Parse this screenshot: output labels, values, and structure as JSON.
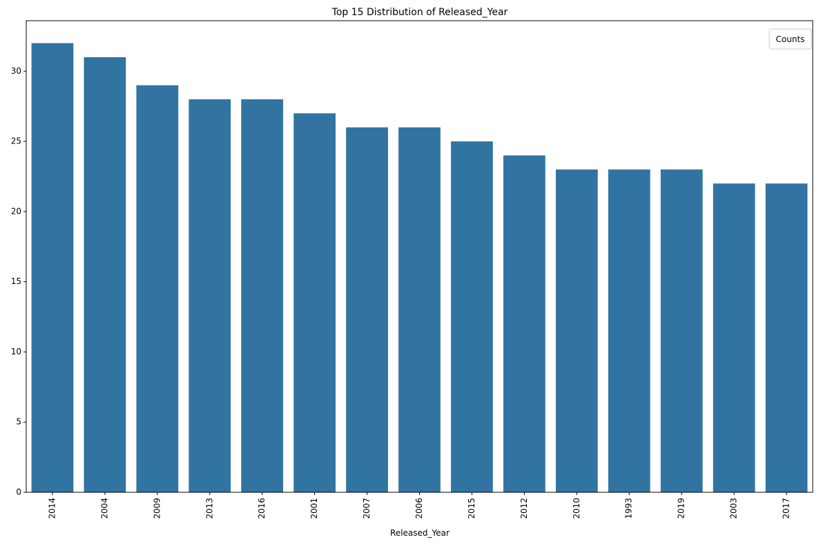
{
  "chart_data": {
    "type": "bar",
    "title": "Top 15 Distribution of Released_Year",
    "xlabel": "Released_Year",
    "ylabel": "",
    "categories": [
      "2014",
      "2004",
      "2009",
      "2013",
      "2016",
      "2001",
      "2007",
      "2006",
      "2015",
      "2012",
      "2010",
      "1993",
      "2019",
      "2003",
      "2017"
    ],
    "values": [
      32,
      31,
      29,
      28,
      28,
      27,
      26,
      26,
      25,
      24,
      23,
      23,
      23,
      22,
      22
    ],
    "ylim": [
      0,
      33.6
    ],
    "yticks": [
      0,
      5,
      10,
      15,
      20,
      25,
      30
    ],
    "grid": false,
    "legend": {
      "title": "Counts",
      "placement": "top-right"
    },
    "colors": {
      "bar": "#3274a1"
    }
  }
}
